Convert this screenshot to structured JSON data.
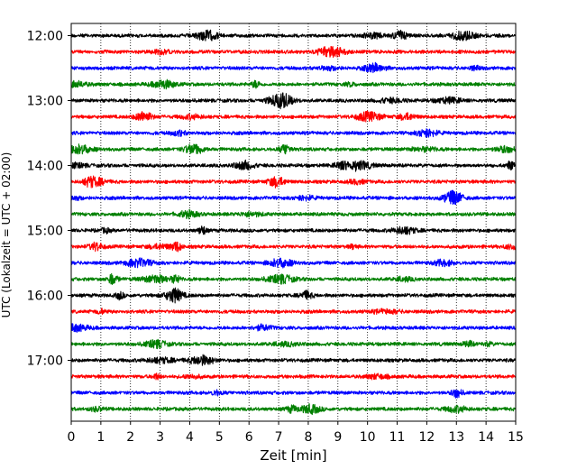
{
  "chart_data": {
    "type": "line",
    "description_kind": "helicorder",
    "xlabel": "Zeit  [min]",
    "ylabel": "UTC (Lokalzeit = UTC + 02:00)",
    "xlim": [
      0,
      15
    ],
    "x_ticks": [
      "0",
      "1",
      "2",
      "3",
      "4",
      "5",
      "6",
      "7",
      "8",
      "9",
      "10",
      "11",
      "12",
      "13",
      "14",
      "15"
    ],
    "x_grid": "dotted vertical lines at each minute",
    "y_tick_labels": [
      "12:00",
      "13:00",
      "14:00",
      "15:00",
      "16:00",
      "17:00"
    ],
    "trace_colors": [
      "#000000",
      "#ff0000",
      "#0000ff",
      "#008000"
    ],
    "traces": [
      {
        "start": "12:00",
        "color": "#000000"
      },
      {
        "start": "12:15",
        "color": "#ff0000"
      },
      {
        "start": "12:30",
        "color": "#0000ff"
      },
      {
        "start": "12:45",
        "color": "#008000"
      },
      {
        "start": "13:00",
        "color": "#000000"
      },
      {
        "start": "13:15",
        "color": "#ff0000"
      },
      {
        "start": "13:30",
        "color": "#0000ff"
      },
      {
        "start": "13:45",
        "color": "#008000"
      },
      {
        "start": "14:00",
        "color": "#000000"
      },
      {
        "start": "14:15",
        "color": "#ff0000"
      },
      {
        "start": "14:30",
        "color": "#0000ff"
      },
      {
        "start": "14:45",
        "color": "#008000"
      },
      {
        "start": "15:00",
        "color": "#000000"
      },
      {
        "start": "15:15",
        "color": "#ff0000"
      },
      {
        "start": "15:30",
        "color": "#0000ff"
      },
      {
        "start": "15:45",
        "color": "#008000"
      },
      {
        "start": "16:00",
        "color": "#000000"
      },
      {
        "start": "16:15",
        "color": "#ff0000"
      },
      {
        "start": "16:30",
        "color": "#0000ff"
      },
      {
        "start": "16:45",
        "color": "#008000"
      },
      {
        "start": "17:00",
        "color": "#000000"
      },
      {
        "start": "17:15",
        "color": "#ff0000"
      },
      {
        "start": "17:30",
        "color": "#0000ff"
      },
      {
        "start": "17:45",
        "color": "#008000"
      }
    ]
  }
}
